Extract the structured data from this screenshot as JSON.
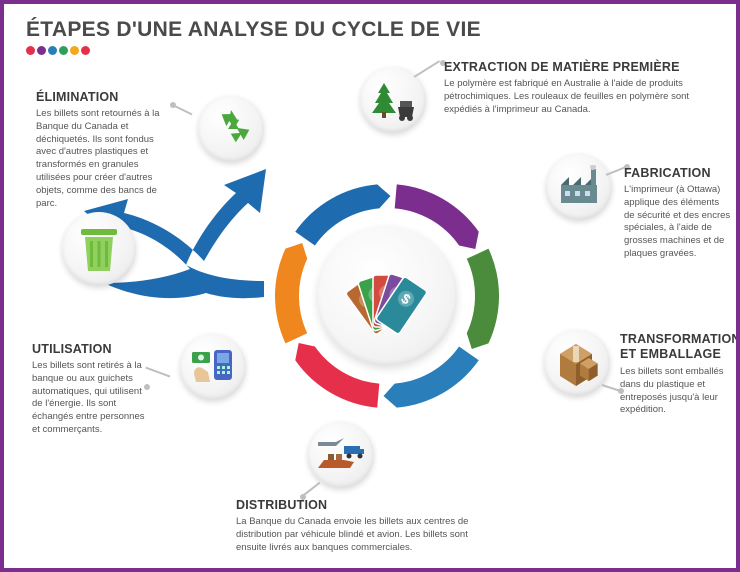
{
  "title": "ÉTAPES D'UNE ANALYSE DU CYCLE DE VIE",
  "dots": [
    "#e6304b",
    "#7b2e8e",
    "#2a7fba",
    "#2fa05a",
    "#f5a81c",
    "#e6304b"
  ],
  "ring_colors": [
    "#7b2e8e",
    "#4a8c3b",
    "#2a7fba",
    "#e6304b",
    "#f0861e",
    "#1f6bb0"
  ],
  "stages": {
    "extraction": {
      "title": "EXTRACTION DE MATIÈRE PREMIÈRE",
      "body": "Le polymère est fabriqué en Australie à l'aide de produits pétrochimiques. Les rouleaux de feuilles en polymère sont expédiés à l'imprimeur au Canada.",
      "icon": "tree",
      "icon_colors": {
        "tree": "#2f8a34",
        "cart": "#3a3a3a"
      }
    },
    "fabrication": {
      "title": "FABRICATION",
      "body": "L'imprimeur (à Ottawa) applique des éléments de sécurité et des encres spéciales, à l'aide de grosses machines et de plaques gravées.",
      "icon": "factory",
      "icon_colors": {
        "body": "#6a8a92",
        "roof": "#4a6a72",
        "smoke": "#bcbcbc"
      }
    },
    "transformation": {
      "title": "TRANSFORMATION ET EMBALLAGE",
      "body": "Les billets sont emballés dans du plastique et entreposés jusqu'à leur expédition.",
      "icon": "boxes",
      "icon_colors": {
        "front": "#b07b3e",
        "side": "#8e5f2a",
        "top": "#cfa066",
        "tape": "#e8d8b8"
      }
    },
    "distribution": {
      "title": "DISTRIBUTION",
      "body": "La Banque du Canada envoie les billets aux centres de distribution par véhicule blindé et avion. Les billets sont ensuite livrés aux banques commerciales.",
      "icon": "transport",
      "icon_colors": {
        "plane": "#7a8a96",
        "truck": "#2a6fb4",
        "ship": "#b85a2a"
      }
    },
    "utilisation": {
      "title": "UTILISATION",
      "body": "Les billets sont retirés à la banque ou aux guichets automatiques, qui utilisent de l'énergie. Ils sont échangés entre personnes et commerçants.",
      "icon": "pos",
      "icon_colors": {
        "terminal": "#4a66c4",
        "screen": "#7aa7e6",
        "hand": "#e9c59a",
        "bill": "#3aa24a"
      }
    },
    "elimination": {
      "title": "ÉLIMINATION",
      "body": "Les billets sont retournés à la Banque du Canada et déchiquetés. Ils sont fondus avec d'autres plastiques et transformés en granules utilisées pour créer d'autres objets, comme des bancs de parc.",
      "icon": "recycle",
      "icon_colors": {
        "arrows": "#4aa83c"
      }
    }
  },
  "bin_icon_color": "#6fbb3c",
  "center_bills": {
    "colors": [
      "#b8692f",
      "#3aa24a",
      "#d24b3e",
      "#7b4b9e",
      "#2a8a9a"
    ],
    "symbol": "$",
    "symbol_color": "#ffffff"
  },
  "branch_arrow_color": "#1f6bb0",
  "background": "#ffffff",
  "frame_border": "#7b2e8e"
}
